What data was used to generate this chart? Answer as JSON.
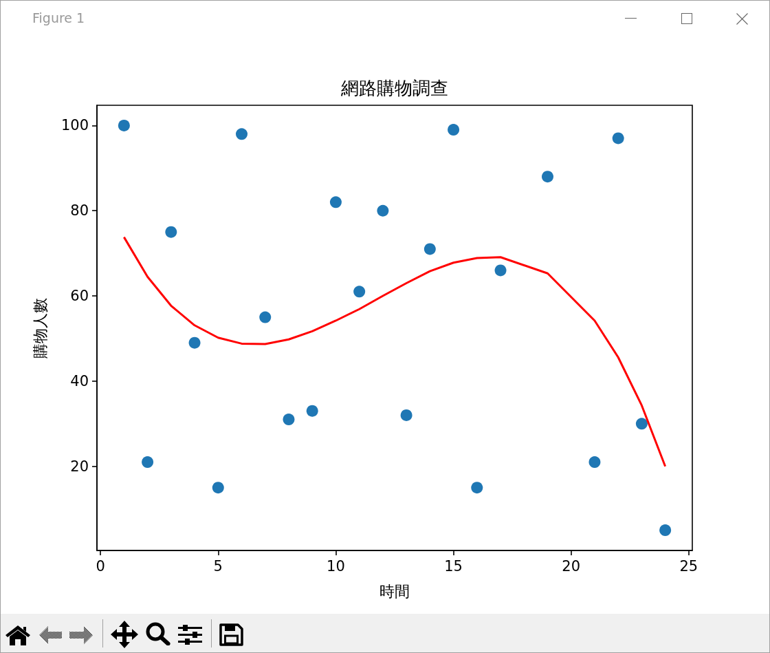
{
  "chart_data": {
    "type": "scatter",
    "title": "網路購物調查",
    "xlabel": "時間",
    "ylabel": "購物人數",
    "annotations": [
      "Figure 1"
    ],
    "series": [
      {
        "color": "#1f77b4",
        "marker": "circle",
        "x": [
          1,
          2,
          3,
          4,
          5,
          6,
          7,
          8,
          9,
          10,
          11,
          12,
          13,
          14,
          15,
          16,
          17,
          19,
          21,
          22,
          23,
          24
        ],
        "values": [
          100,
          21,
          75,
          49,
          15,
          98,
          55,
          31,
          33,
          82,
          61,
          80,
          32,
          71,
          99,
          15,
          66,
          88,
          21,
          97,
          30,
          5
        ]
      },
      {
        "type": "line",
        "color": "#ff0000",
        "marker": "none",
        "line_style": "solid",
        "x": [
          1,
          2,
          3,
          4,
          5,
          6,
          7,
          8,
          9,
          10,
          11,
          12,
          13,
          14,
          15,
          16,
          17,
          19,
          21,
          22,
          23,
          24
        ],
        "values": [
          73.8,
          64.5,
          57.7,
          53.1,
          50.2,
          48.8,
          48.7,
          49.8,
          51.7,
          54.2,
          56.9,
          60.0,
          63.0,
          65.8,
          67.8,
          68.9,
          69.1,
          65.3,
          54.2,
          45.6,
          34.3,
          20.0
        ]
      }
    ],
    "xlim": [
      -0.15,
      25.15
    ],
    "xticks": [
      0,
      5,
      10,
      15,
      20,
      25
    ],
    "ylim": [
      0.25,
      104.75
    ],
    "yticks": [
      20,
      40,
      60,
      80,
      100
    ]
  }
}
